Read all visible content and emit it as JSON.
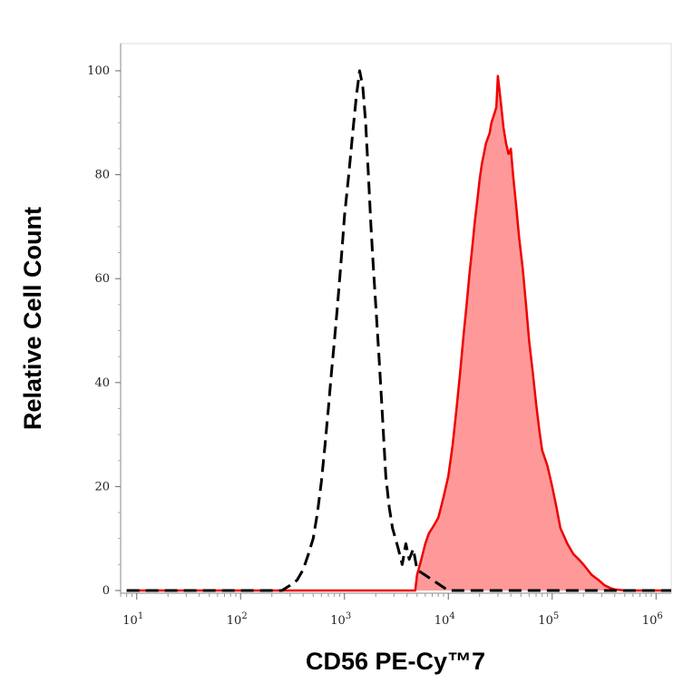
{
  "chart_data": {
    "type": "area",
    "xlabel": "CD56 PE-Cy™7",
    "ylabel": "Relative Cell Count",
    "xscale": "log",
    "xlim": [
      7,
      1400000
    ],
    "ylim": [
      -1,
      100
    ],
    "grid": false,
    "y_ticks": [
      0,
      20,
      40,
      60,
      80,
      100
    ],
    "x_ticks": [
      {
        "base": "10",
        "exp": "1",
        "value": 10
      },
      {
        "base": "10",
        "exp": "2",
        "value": 100
      },
      {
        "base": "10",
        "exp": "3",
        "value": 1000
      },
      {
        "base": "10",
        "exp": "4",
        "value": 10000
      },
      {
        "base": "10",
        "exp": "5",
        "value": 100000
      },
      {
        "base": "10",
        "exp": "6",
        "value": 1000000
      }
    ],
    "series": [
      {
        "style": "dashed",
        "color": "#000000",
        "fill": "none",
        "x": [
          8,
          250,
          300,
          350,
          400,
          450,
          500,
          550,
          600,
          650,
          700,
          750,
          800,
          850,
          900,
          950,
          1000,
          1100,
          1200,
          1300,
          1400,
          1500,
          1600,
          1700,
          1800,
          1900,
          2000,
          2150,
          2300,
          2500,
          2700,
          2900,
          3100,
          3300,
          3600,
          3900,
          4200,
          4600,
          5000,
          10000,
          1400000
        ],
        "y": [
          0,
          0,
          1,
          2,
          4,
          7,
          10,
          15,
          21,
          28,
          35,
          42,
          48,
          54,
          60,
          66,
          72,
          80,
          88,
          95,
          100,
          97,
          90,
          80,
          70,
          62,
          55,
          45,
          35,
          22,
          16,
          12,
          10,
          8,
          5,
          9,
          6,
          8,
          4,
          0,
          0
        ]
      },
      {
        "style": "solid",
        "color": "#ee0000",
        "fill": "#ff9999",
        "x": [
          8,
          4800,
          5000,
          5500,
          6000,
          6500,
          7000,
          7500,
          8000,
          8500,
          9000,
          10000,
          11000,
          12000,
          13000,
          14000,
          15000,
          16000,
          17000,
          18000,
          19000,
          20000,
          21000,
          22000,
          23000,
          24000,
          25000,
          26000,
          27000,
          28000,
          29000,
          30000,
          32000,
          34000,
          36000,
          38000,
          40000,
          42000,
          45000,
          48000,
          52000,
          56000,
          60000,
          65000,
          70000,
          75000,
          80000,
          90000,
          100000,
          110000,
          120000,
          140000,
          160000,
          180000,
          200000,
          240000,
          280000,
          320000,
          360000,
          400000,
          450000,
          500000,
          1400000
        ],
        "y": [
          0,
          0,
          3,
          6,
          9,
          11,
          12,
          13,
          14,
          16,
          18,
          22,
          28,
          35,
          42,
          49,
          55,
          61,
          66,
          71,
          75,
          79,
          82,
          84,
          86,
          87,
          88,
          90,
          91,
          92,
          93,
          99,
          94,
          89,
          86,
          84,
          85,
          80,
          74,
          68,
          62,
          55,
          48,
          42,
          36,
          31,
          27,
          24,
          20,
          16,
          12,
          9,
          7,
          6,
          5,
          3,
          2,
          1,
          0.5,
          0.2,
          0.1,
          0,
          0
        ]
      }
    ]
  }
}
